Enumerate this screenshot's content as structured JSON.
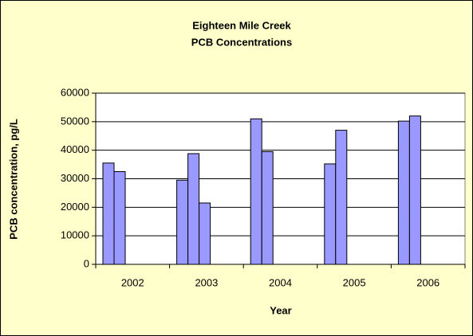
{
  "chart_data": {
    "type": "bar",
    "title": [
      "Eighteen Mile Creek",
      "PCB Concentrations"
    ],
    "x_label": "Year",
    "y_label": "PCB concentration, pg/L",
    "categories": [
      "2002",
      "2003",
      "2004",
      "2005",
      "2006"
    ],
    "series": [
      {
        "color": "#9999ff",
        "values": [
          35500,
          29500,
          51000,
          35200,
          50200
        ]
      },
      {
        "color": "#9999ff",
        "values": [
          32500,
          38800,
          39500,
          47000,
          52000
        ]
      },
      {
        "color": "#9999ff",
        "values": [
          null,
          21500,
          null,
          null,
          null
        ]
      }
    ],
    "ylim": [
      0,
      60000
    ],
    "yticks": [
      0,
      10000,
      20000,
      30000,
      40000,
      50000,
      60000
    ],
    "grid": true
  }
}
